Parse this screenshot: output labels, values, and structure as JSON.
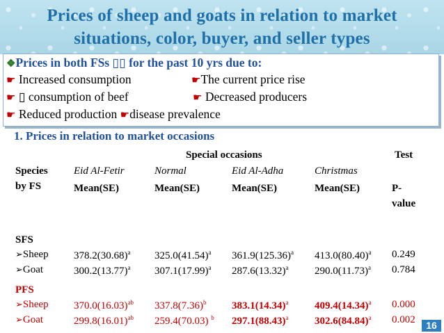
{
  "title": {
    "line1": "Prices of sheep and goats in relation to market",
    "line2": "situations, color, buyer, and seller types"
  },
  "bullets": {
    "heading": "Prices in both FSs ▯▯ for the past 10 yrs due to:",
    "r1a": "Increased consumption",
    "r1b": "The current price rise",
    "r2a": "▯ consumption of beef",
    "r2b": "Decreased producers",
    "r3a": "Reduced production",
    "r3b": "disease prevalence"
  },
  "section_title": "1. Prices in relation to market occasions",
  "table": {
    "group_header": "Special occasions",
    "test_header": "Test",
    "row_header": [
      "Species",
      "by FS"
    ],
    "occasions": [
      "Eid Al-Fetir",
      "Normal",
      "Eid Al-Adha",
      "Christmas"
    ],
    "mean_label": "Mean(SE)",
    "p_label": [
      "P-",
      "value"
    ],
    "groups": [
      {
        "name": "SFS",
        "rows": [
          {
            "species": "Sheep",
            "values": [
              "378.2(30.68)",
              "325.0(41.54)",
              "361.9(125.36)",
              "413.0(80.40)"
            ],
            "sups": [
              "a",
              "a",
              "a",
              "a"
            ],
            "p": "0.249"
          },
          {
            "species": "Goat",
            "values": [
              "300.2(13.77)",
              "307.1(17.99)",
              "287.6(13.32)",
              "290.0(11.73)"
            ],
            "sups": [
              "a",
              "a",
              "a",
              "a"
            ],
            "p": "0.784"
          }
        ]
      },
      {
        "name": "PFS",
        "rows": [
          {
            "species": "Sheep",
            "values": [
              "370.0(16.03)",
              "337.8(7.36)",
              "383.1(14.34)",
              "409.4(14.34)"
            ],
            "sups": [
              "ab",
              "b",
              "a",
              "a"
            ],
            "p": "0.000"
          },
          {
            "species": "Goat",
            "values": [
              "299.8(16.01)",
              "259.4(70.03) ",
              "297.1(88.43)",
              "302.6(84.84)"
            ],
            "sups": [
              "ab",
              "b",
              "a",
              "a"
            ],
            "p": "0.002"
          }
        ]
      }
    ]
  },
  "page_number": "16"
}
